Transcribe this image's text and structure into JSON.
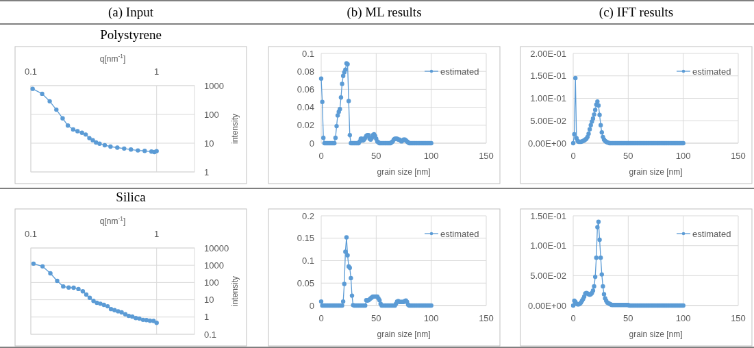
{
  "chart_data": [
    {
      "type": "line",
      "title": "(a) Input",
      "subtitle": "Polystyrene",
      "xlabel": "q[nm$^{-1}$]",
      "ylabel": "intensity",
      "log": "xy",
      "xlim": [
        0.1,
        2
      ],
      "xticks": [
        0.1,
        1
      ],
      "ylim": [
        1,
        1000
      ],
      "yticks": [
        1,
        10,
        100,
        1000
      ],
      "grid": true,
      "marker": "circle",
      "series": [
        {
          "color": "#5b9bd5",
          "x": [
            0.1034,
            0.123,
            0.1413,
            0.1596,
            0.179,
            0.197,
            0.217,
            0.235,
            0.255,
            0.273,
            0.292,
            0.311,
            0.33,
            0.352,
            0.387,
            0.43,
            0.487,
            0.552,
            0.625,
            0.71,
            0.804,
            0.91,
            0.96,
            1.0
          ],
          "values": [
            776,
            521,
            286,
            146,
            73,
            41,
            30,
            26,
            23,
            20,
            15,
            12.7,
            10.6,
            9.6,
            8.5,
            7.6,
            7.0,
            6.5,
            6.0,
            5.6,
            5.4,
            5.1,
            4.9,
            5.3
          ]
        }
      ]
    },
    {
      "type": "line",
      "title": "(b) ML results",
      "xlabel": "grain size [nm]",
      "xlim": [
        0,
        150
      ],
      "xticks": [
        0,
        50,
        100,
        150
      ],
      "ylim": [
        0,
        0.1
      ],
      "yticks": [
        0,
        0.02,
        0.04,
        0.06,
        0.08,
        0.1
      ],
      "grid": true,
      "legend": "top right",
      "marker": "circle",
      "series": [
        {
          "name": "estimated",
          "color": "#5b9bd5",
          "x": [
            0,
            1,
            2,
            3,
            4,
            5,
            6,
            7,
            8,
            9,
            10,
            11,
            12,
            13,
            14,
            15,
            16,
            17,
            18,
            19,
            20,
            21,
            22,
            23,
            24,
            25,
            26,
            27,
            28,
            29,
            30,
            31,
            32,
            33,
            34,
            35,
            36,
            37,
            38,
            39,
            40,
            41,
            42,
            43,
            44,
            45,
            46,
            47,
            48,
            49,
            50,
            51,
            52,
            53,
            54,
            55,
            56,
            57,
            58,
            59,
            60,
            61,
            62,
            63,
            64,
            65,
            66,
            67,
            68,
            69,
            70,
            71,
            72,
            73,
            74,
            75,
            76,
            77,
            78,
            79,
            80,
            81,
            82,
            83,
            84,
            85,
            86,
            87,
            88,
            89,
            90,
            91,
            92,
            93,
            94,
            95,
            96,
            97,
            98,
            99,
            100
          ],
          "values": [
            0.072,
            0.046,
            0.006,
            0,
            0,
            0,
            0,
            0,
            0,
            0,
            0,
            0,
            0,
            0.006,
            0.019,
            0.031,
            0.035,
            0.038,
            0.051,
            0.066,
            0.075,
            0.079,
            0.082,
            0.089,
            0.088,
            0.047,
            0.009,
            0,
            0,
            0,
            0,
            0,
            0,
            0,
            0,
            0.002,
            0.005,
            0.005,
            0.003,
            0.004,
            0.006,
            0.008,
            0.009,
            0.009,
            0.005,
            0.004,
            0.006,
            0.009,
            0.01,
            0.008,
            0.005,
            0.002,
            0.001,
            0,
            0,
            0,
            0,
            0,
            0,
            0,
            0,
            0,
            0,
            0,
            0.001,
            0.002,
            0.004,
            0.005,
            0.005,
            0.005,
            0.004,
            0.004,
            0.003,
            0.002,
            0.003,
            0.004,
            0.004,
            0.003,
            0.002,
            0.001,
            0,
            0,
            0,
            0,
            0,
            0,
            0,
            0,
            0,
            0,
            0,
            0,
            0,
            0,
            0,
            0,
            0,
            0,
            0,
            0,
            0
          ]
        }
      ]
    },
    {
      "type": "line",
      "title": "(c) IFT results",
      "xlabel": "grain size [nm]",
      "xlim": [
        0,
        150
      ],
      "xticks": [
        0,
        50,
        100,
        150
      ],
      "ylim": [
        0,
        0.2
      ],
      "yticks": [
        {
          "value": 0,
          "label": "0.00E+00"
        },
        {
          "value": 0.05,
          "label": "5.00E-02"
        },
        {
          "value": 0.1,
          "label": "1.00E-01"
        },
        {
          "value": 0.15,
          "label": "1.50E-01"
        },
        {
          "value": 0.2,
          "label": "2.00E-01"
        }
      ],
      "grid": true,
      "legend": "top right",
      "marker": "circle",
      "series": [
        {
          "name": "estimated",
          "color": "#5b9bd5",
          "x": [
            0,
            1,
            2,
            3,
            4,
            5,
            6,
            7,
            8,
            9,
            10,
            11,
            12,
            13,
            14,
            15,
            16,
            17,
            18,
            19,
            20,
            21,
            22,
            23,
            24,
            25,
            26,
            27,
            28,
            29,
            30,
            31,
            32,
            33,
            34,
            35,
            36,
            37,
            38,
            39,
            40,
            41,
            42,
            43,
            44,
            45,
            46,
            47,
            48,
            49,
            50,
            51,
            52,
            53,
            54,
            55,
            56,
            57,
            58,
            59,
            60,
            61,
            62,
            63,
            64,
            65,
            66,
            67,
            68,
            69,
            70,
            71,
            72,
            73,
            74,
            75,
            76,
            77,
            78,
            79,
            80,
            81,
            82,
            83,
            84,
            85,
            86,
            87,
            88,
            89,
            90,
            91,
            92,
            93,
            94,
            95,
            96,
            97,
            98,
            99,
            100
          ],
          "values": [
            0,
            0.02,
            0.145,
            0.011,
            0.005,
            0.003,
            0.003,
            0.003,
            0.004,
            0.005,
            0.006,
            0.008,
            0.01,
            0.014,
            0.021,
            0.031,
            0.04,
            0.048,
            0.055,
            0.064,
            0.074,
            0.086,
            0.093,
            0.084,
            0.063,
            0.04,
            0.024,
            0.014,
            0.008,
            0.005,
            0.003,
            0.002,
            0.001,
            0,
            0,
            0,
            0,
            0,
            0,
            0,
            0,
            0,
            0,
            0,
            0,
            0,
            0,
            0,
            0,
            0,
            0,
            0,
            0,
            0,
            0,
            0,
            0,
            0,
            0,
            0,
            0,
            0,
            0,
            0,
            0,
            0,
            0,
            0,
            0,
            0,
            0,
            0,
            0,
            0,
            0,
            0,
            0,
            0,
            0,
            0,
            0,
            0,
            0,
            0,
            0,
            0,
            0,
            0,
            0,
            0,
            0,
            0,
            0,
            0,
            0,
            0,
            0,
            0,
            0,
            0,
            0
          ]
        }
      ]
    },
    {
      "type": "line",
      "subtitle": "Silica",
      "xlabel": "q[nm$^{-1}$]",
      "ylabel": "intensity",
      "log": "xy",
      "xlim": [
        0.1,
        2
      ],
      "xticks": [
        0.1,
        1
      ],
      "ylim": [
        0.1,
        10000
      ],
      "yticks": [
        0.1,
        1,
        10,
        100,
        1000,
        10000
      ],
      "grid": true,
      "marker": "circle",
      "series": [
        {
          "color": "#5b9bd5",
          "x": [
            0.105,
            0.124,
            0.143,
            0.162,
            0.181,
            0.2,
            0.219,
            0.239,
            0.259,
            0.276,
            0.294,
            0.315,
            0.335,
            0.357,
            0.381,
            0.408,
            0.434,
            0.463,
            0.494,
            0.527,
            0.564,
            0.6,
            0.641,
            0.683,
            0.73,
            0.78,
            0.83,
            0.886,
            0.946,
            1.0
          ],
          "values": [
            1240,
            860,
            340,
            124,
            59,
            51,
            50,
            42,
            31,
            20,
            13,
            8.6,
            6.7,
            5.9,
            5.1,
            4.2,
            2.9,
            2.5,
            2.15,
            1.85,
            1.45,
            1.17,
            1.06,
            0.88,
            0.81,
            0.69,
            0.67,
            0.61,
            0.59,
            0.46
          ]
        }
      ]
    },
    {
      "type": "line",
      "xlabel": "grain size [nm]",
      "xlim": [
        0,
        150
      ],
      "xticks": [
        0,
        50,
        100,
        150
      ],
      "ylim": [
        0,
        0.2
      ],
      "yticks": [
        0,
        0.05,
        0.1,
        0.15,
        0.2
      ],
      "grid": true,
      "legend": "top right",
      "marker": "circle",
      "series": [
        {
          "name": "estimated",
          "color": "#5b9bd5",
          "x": [
            0,
            1,
            2,
            3,
            4,
            5,
            6,
            7,
            8,
            9,
            10,
            11,
            12,
            13,
            14,
            15,
            16,
            17,
            18,
            19,
            20,
            21,
            22,
            23,
            24,
            25,
            26,
            27,
            28,
            29,
            30,
            31,
            32,
            33,
            34,
            35,
            36,
            37,
            38,
            39,
            40,
            41,
            42,
            43,
            44,
            45,
            46,
            47,
            48,
            49,
            50,
            51,
            52,
            53,
            54,
            55,
            56,
            57,
            58,
            59,
            60,
            61,
            62,
            63,
            64,
            65,
            66,
            67,
            68,
            69,
            70,
            71,
            72,
            73,
            74,
            75,
            76,
            77,
            78,
            79,
            80,
            81,
            82,
            83,
            84,
            85,
            86,
            87,
            88,
            89,
            90,
            91,
            92,
            93,
            94,
            95,
            96,
            97,
            98,
            99,
            100
          ],
          "values": [
            0.009,
            0,
            0,
            0,
            0,
            0,
            0,
            0,
            0,
            0,
            0,
            0,
            0,
            0,
            0,
            0,
            0,
            0,
            0,
            0,
            0.009,
            0.048,
            0.12,
            0.152,
            0.112,
            0.087,
            0.084,
            0.061,
            0.022,
            0.001,
            0,
            0,
            0,
            0,
            0,
            0,
            0,
            0,
            0,
            0,
            0,
            0.012,
            0.011,
            0.012,
            0.014,
            0.016,
            0.018,
            0.02,
            0.02,
            0.02,
            0.02,
            0.02,
            0.016,
            0.012,
            0.004,
            0,
            0,
            0,
            0,
            0,
            0,
            0,
            0,
            0,
            0,
            0,
            0,
            0,
            0.004,
            0.009,
            0.01,
            0.008,
            0.008,
            0.008,
            0.008,
            0.008,
            0.01,
            0.011,
            0.008,
            0.002,
            0,
            0,
            0,
            0,
            0,
            0,
            0,
            0,
            0,
            0,
            0,
            0,
            0,
            0,
            0,
            0,
            0,
            0,
            0,
            0,
            0
          ]
        }
      ]
    },
    {
      "type": "line",
      "xlabel": "grain size [nm]",
      "xlim": [
        0,
        150
      ],
      "xticks": [
        0,
        50,
        100,
        150
      ],
      "ylim": [
        0,
        0.15
      ],
      "yticks": [
        {
          "value": 0,
          "label": "0.00E+00"
        },
        {
          "value": 0.05,
          "label": "5.00E-02"
        },
        {
          "value": 0.1,
          "label": "1.00E-01"
        },
        {
          "value": 0.15,
          "label": "1.50E-01"
        }
      ],
      "grid": true,
      "legend": "top right",
      "marker": "circle",
      "series": [
        {
          "name": "estimated",
          "color": "#5b9bd5",
          "x": [
            0,
            1,
            2,
            3,
            4,
            5,
            6,
            7,
            8,
            9,
            10,
            11,
            12,
            13,
            14,
            15,
            16,
            17,
            18,
            19,
            20,
            21,
            22,
            23,
            24,
            25,
            26,
            27,
            28,
            29,
            30,
            31,
            32,
            33,
            34,
            35,
            36,
            37,
            38,
            39,
            40,
            41,
            42,
            43,
            44,
            45,
            46,
            47,
            48,
            49,
            50,
            51,
            52,
            53,
            54,
            55,
            56,
            57,
            58,
            59,
            60,
            61,
            62,
            63,
            64,
            65,
            66,
            67,
            68,
            69,
            70,
            71,
            72,
            73,
            74,
            75,
            76,
            77,
            78,
            79,
            80,
            81,
            82,
            83,
            84,
            85,
            86,
            87,
            88,
            89,
            90,
            91,
            92,
            93,
            94,
            95,
            96,
            97,
            98,
            99,
            100
          ],
          "values": [
            0,
            0.008,
            0.006,
            0.003,
            0.002,
            0.002,
            0.003,
            0.005,
            0.008,
            0.011,
            0.015,
            0.02,
            0.021,
            0.02,
            0.019,
            0.018,
            0.019,
            0.021,
            0.025,
            0.032,
            0.048,
            0.08,
            0.131,
            0.14,
            0.11,
            0.08,
            0.052,
            0.032,
            0.019,
            0.012,
            0.008,
            0.005,
            0.004,
            0.003,
            0.002,
            0.001,
            0.001,
            0.001,
            0.001,
            0.001,
            0.001,
            0.001,
            0.001,
            0.001,
            0.001,
            0.001,
            0.001,
            0.001,
            0.001,
            0.001,
            0.001,
            0,
            0,
            0,
            0,
            0,
            0,
            0,
            0,
            0,
            0,
            0,
            0,
            0,
            0,
            0,
            0,
            0,
            0,
            0,
            0,
            0,
            0,
            0,
            0,
            0,
            0,
            0,
            0,
            0,
            0,
            0,
            0,
            0,
            0,
            0,
            0,
            0,
            0,
            0,
            0,
            0,
            0,
            0,
            0,
            0,
            0,
            0,
            0,
            0,
            0
          ]
        }
      ]
    }
  ]
}
